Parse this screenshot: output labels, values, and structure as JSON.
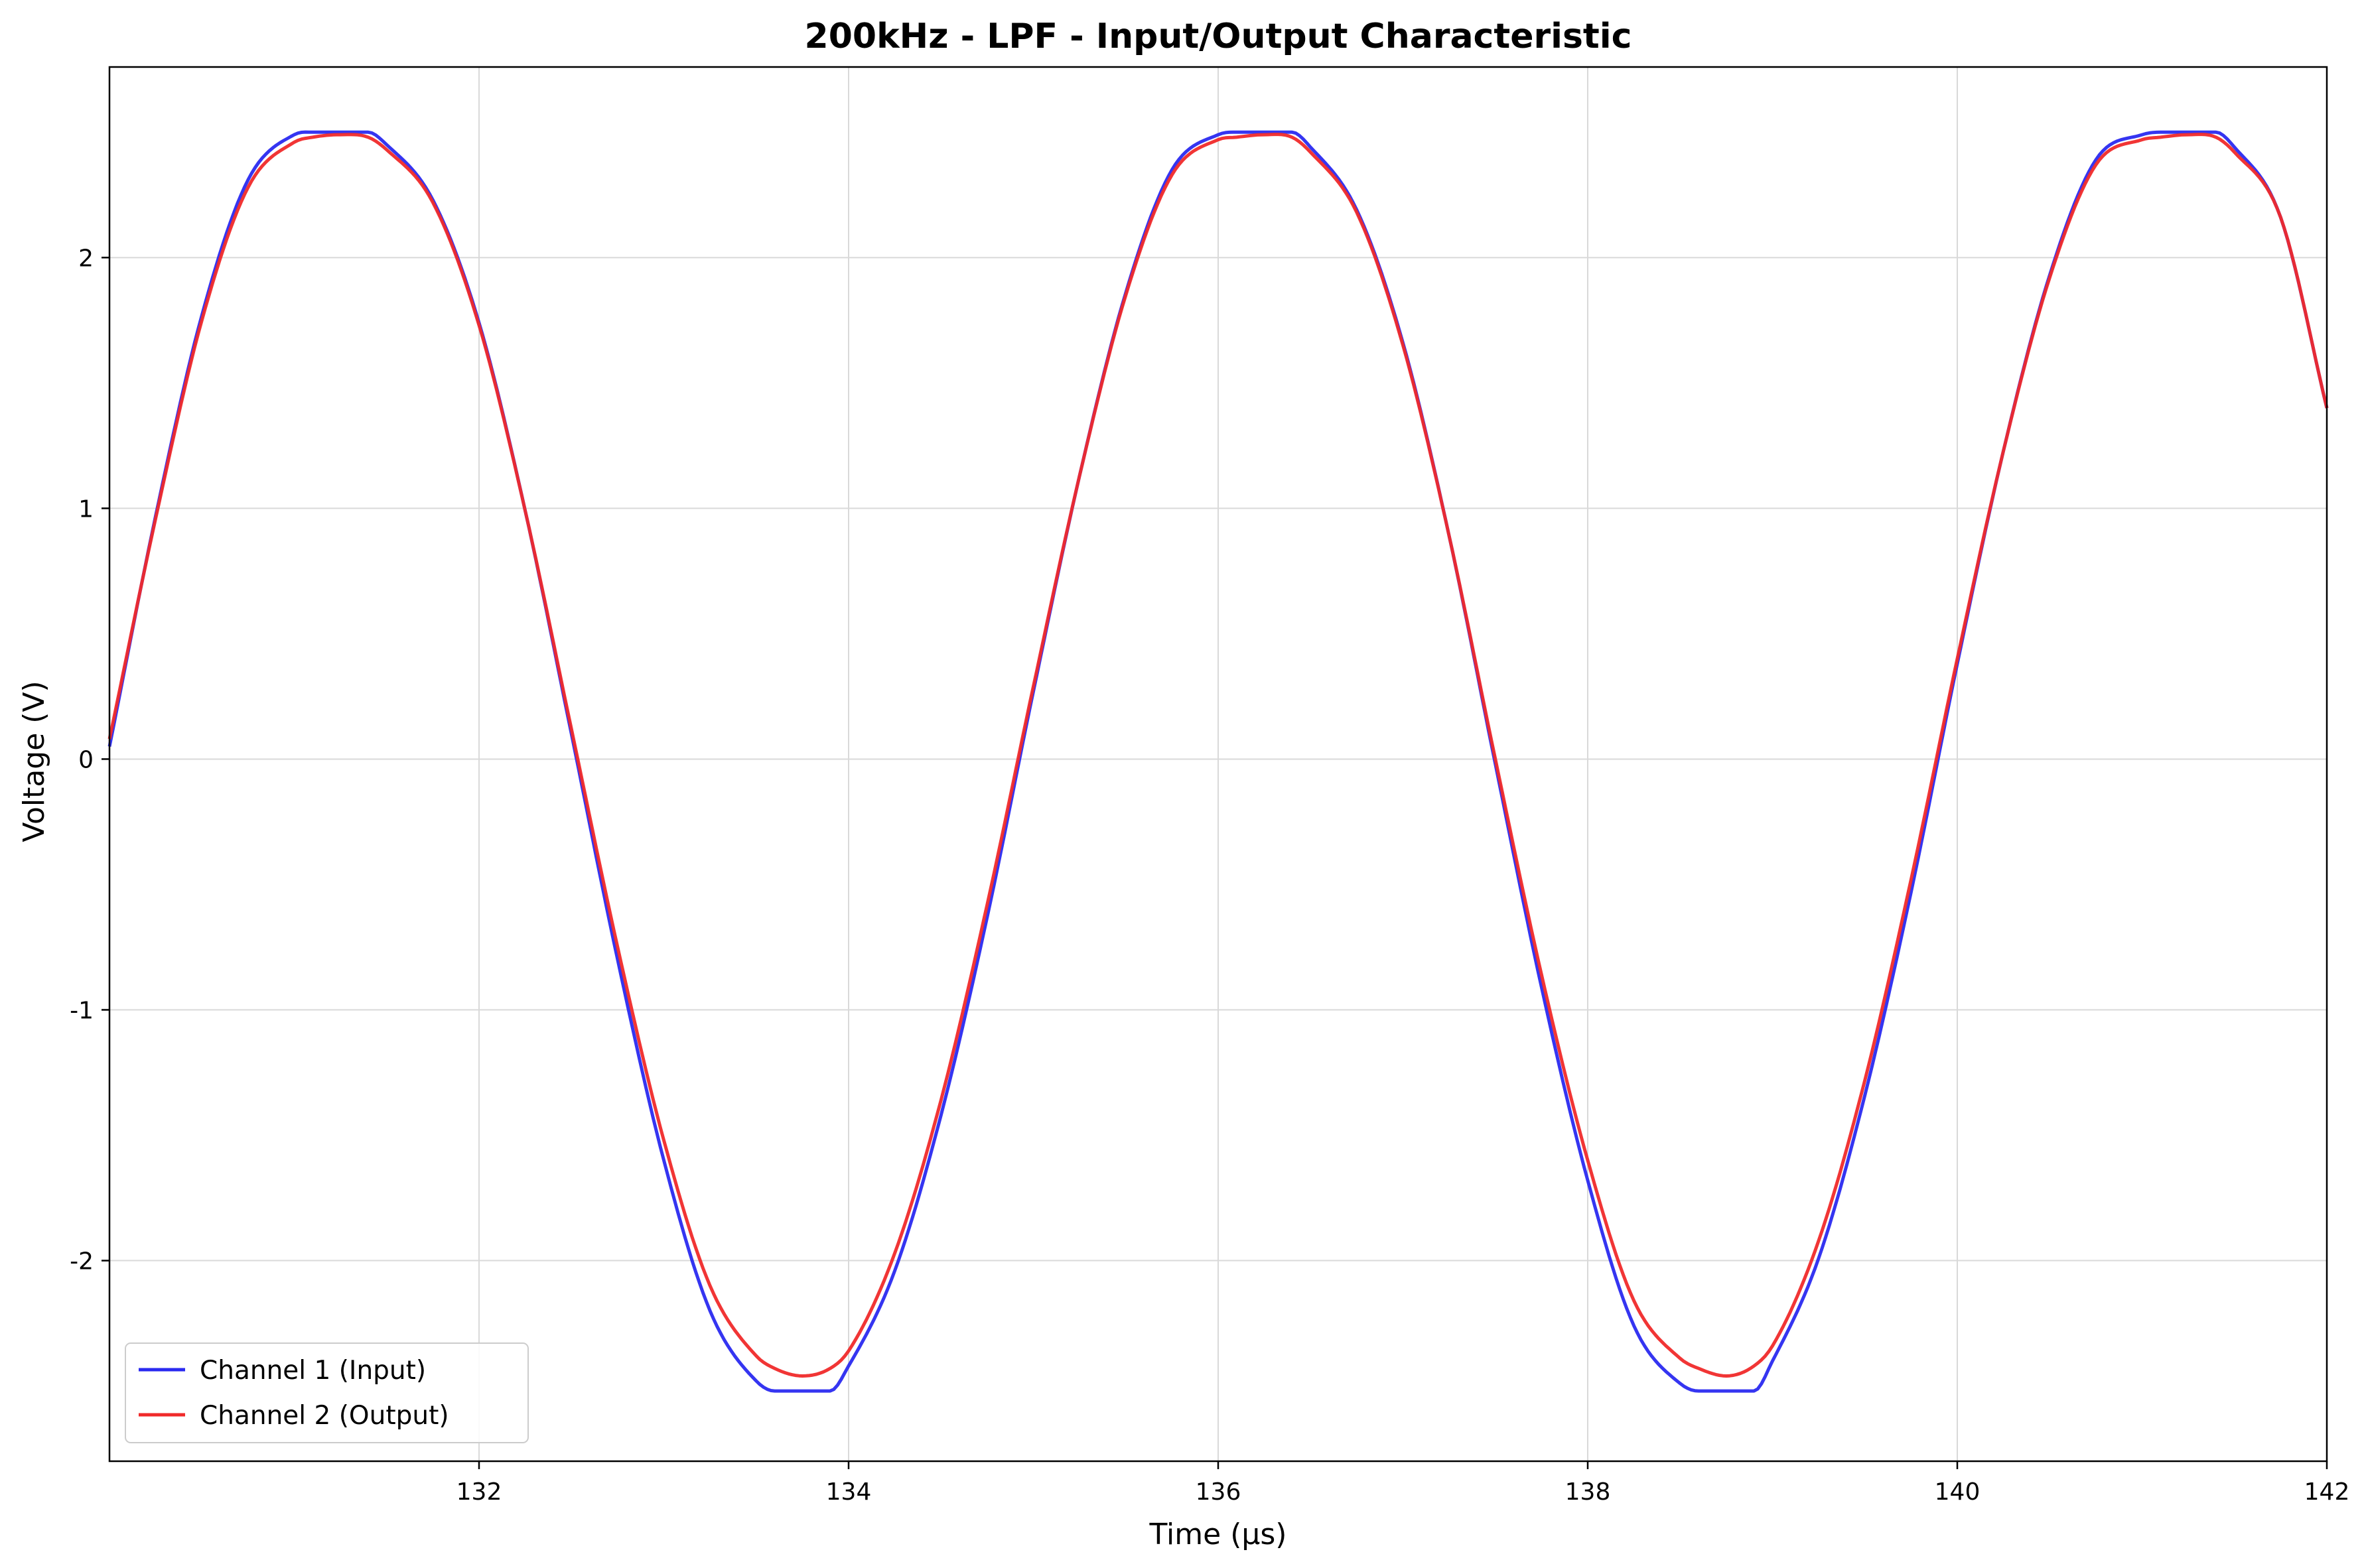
{
  "chart_data": {
    "type": "line",
    "title": "200kHz - LPF - Input/Output Characteristic",
    "xlabel": "Time (µs)",
    "ylabel": "Voltage (V)",
    "xlim": [
      130.0,
      142.0
    ],
    "ylim": [
      -2.8,
      2.76
    ],
    "x_ticks": [
      132,
      134,
      136,
      138,
      140,
      142
    ],
    "x_tick_labels": [
      "132",
      "134",
      "136",
      "138",
      "140",
      "142"
    ],
    "y_ticks": [
      -2,
      -1,
      0,
      1,
      2
    ],
    "y_tick_labels": [
      "-2",
      "-1",
      "0",
      "1",
      "2"
    ],
    "grid": true,
    "legend_position": "lower-left",
    "series": [
      {
        "name": "Channel 1 (Input)",
        "color": "#2a2af0",
        "x": [
          130.0,
          130.25,
          130.5,
          130.75,
          131.0,
          131.1,
          131.25,
          131.4,
          131.5,
          131.75,
          132.0,
          132.25,
          132.5,
          132.75,
          133.0,
          133.25,
          133.5,
          133.6,
          133.75,
          133.9,
          134.0,
          134.25,
          134.5,
          134.75,
          135.0,
          135.25,
          135.5,
          135.75,
          136.0,
          136.1,
          136.25,
          136.4,
          136.5,
          136.75,
          137.0,
          137.25,
          137.5,
          137.75,
          138.0,
          138.25,
          138.5,
          138.6,
          138.75,
          138.9,
          139.0,
          139.25,
          139.5,
          139.75,
          140.0,
          140.25,
          140.5,
          140.75,
          141.0,
          141.1,
          141.25,
          141.4,
          141.5,
          141.75,
          142.0
        ],
        "y": [
          0.05,
          0.97,
          1.77,
          2.31,
          2.49,
          2.5,
          2.5,
          2.5,
          2.45,
          2.23,
          1.74,
          0.99,
          0.1,
          -0.8,
          -1.6,
          -2.2,
          -2.48,
          -2.52,
          -2.52,
          -2.52,
          -2.42,
          -2.04,
          -1.42,
          -0.63,
          0.27,
          1.13,
          1.86,
          2.35,
          2.49,
          2.5,
          2.5,
          2.5,
          2.44,
          2.19,
          1.66,
          0.89,
          -0.02,
          -0.91,
          -1.68,
          -2.26,
          -2.49,
          -2.52,
          -2.52,
          -2.52,
          -2.4,
          -1.99,
          -1.34,
          -0.53,
          0.38,
          1.23,
          1.93,
          2.39,
          2.49,
          2.5,
          2.5,
          2.5,
          2.44,
          2.16,
          1.4
        ]
      },
      {
        "name": "Channel 2 (Output)",
        "color": "#f02a2a",
        "x": [
          130.0,
          130.25,
          130.5,
          130.75,
          131.0,
          131.1,
          131.25,
          131.4,
          131.5,
          131.75,
          132.0,
          132.25,
          132.5,
          132.75,
          133.0,
          133.25,
          133.5,
          133.6,
          133.75,
          133.9,
          134.0,
          134.25,
          134.5,
          134.75,
          135.0,
          135.25,
          135.5,
          135.75,
          136.0,
          136.1,
          136.25,
          136.4,
          136.5,
          136.75,
          137.0,
          137.25,
          137.5,
          137.75,
          138.0,
          138.25,
          138.5,
          138.6,
          138.75,
          138.9,
          139.0,
          139.25,
          139.5,
          139.75,
          140.0,
          140.25,
          140.5,
          140.75,
          141.0,
          141.1,
          141.25,
          141.4,
          141.5,
          141.75,
          142.0
        ],
        "y": [
          0.08,
          0.96,
          1.75,
          2.28,
          2.46,
          2.48,
          2.49,
          2.48,
          2.43,
          2.22,
          1.73,
          0.99,
          0.12,
          -0.75,
          -1.52,
          -2.1,
          -2.38,
          -2.43,
          -2.46,
          -2.43,
          -2.36,
          -1.97,
          -1.36,
          -0.58,
          0.29,
          1.13,
          1.85,
          2.33,
          2.47,
          2.48,
          2.49,
          2.48,
          2.42,
          2.18,
          1.65,
          0.89,
          0.0,
          -0.86,
          -1.6,
          -2.16,
          -2.39,
          -2.43,
          -2.46,
          -2.42,
          -2.34,
          -1.92,
          -1.28,
          -0.48,
          0.4,
          1.23,
          1.92,
          2.37,
          2.47,
          2.48,
          2.49,
          2.48,
          2.42,
          2.16,
          1.4
        ]
      }
    ]
  }
}
